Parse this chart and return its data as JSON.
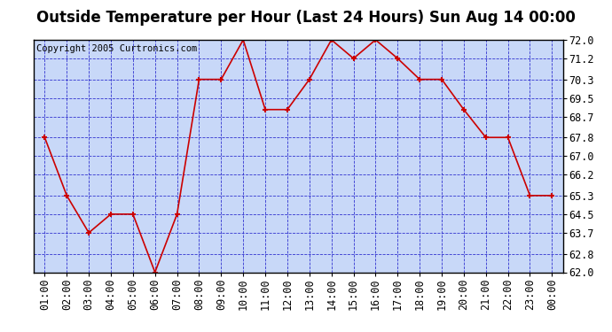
{
  "title": "Outside Temperature per Hour (Last 24 Hours) Sun Aug 14 00:00",
  "copyright": "Copyright 2005 Curtronics.com",
  "hours": [
    "01:00",
    "02:00",
    "03:00",
    "04:00",
    "05:00",
    "06:00",
    "07:00",
    "08:00",
    "09:00",
    "10:00",
    "11:00",
    "12:00",
    "13:00",
    "14:00",
    "15:00",
    "16:00",
    "17:00",
    "18:00",
    "19:00",
    "20:00",
    "21:00",
    "22:00",
    "23:00",
    "00:00"
  ],
  "values": [
    67.8,
    65.3,
    63.7,
    64.5,
    64.5,
    62.0,
    64.5,
    70.3,
    70.3,
    72.0,
    69.0,
    69.0,
    70.3,
    72.0,
    71.2,
    72.0,
    71.2,
    70.3,
    70.3,
    69.0,
    67.8,
    67.8,
    65.3,
    65.3
  ],
  "ylim": [
    62.0,
    72.0
  ],
  "yticks": [
    62.0,
    62.8,
    63.7,
    64.5,
    65.3,
    66.2,
    67.0,
    67.8,
    68.7,
    69.5,
    70.3,
    71.2,
    72.0
  ],
  "line_color": "#cc0000",
  "marker_color": "#cc0000",
  "bg_color": "#c8d8f8",
  "fig_bg": "#ffffff",
  "grid_color": "#2222cc",
  "border_color": "#000000",
  "title_fontsize": 12,
  "copyright_fontsize": 7.5,
  "tick_fontsize": 8.5
}
